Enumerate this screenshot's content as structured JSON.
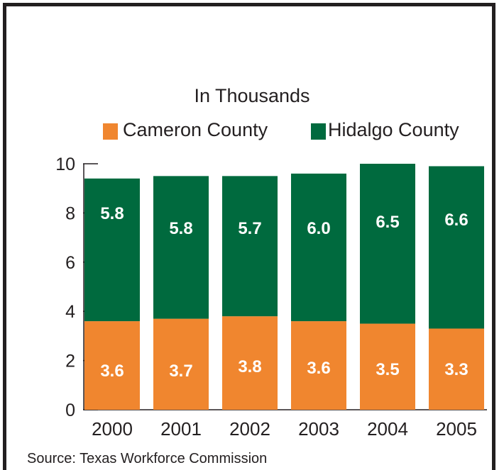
{
  "chart_data": {
    "type": "bar",
    "stacked": true,
    "title": "",
    "subtitle": "In Thousands",
    "categories": [
      "2000",
      "2001",
      "2002",
      "2003",
      "2004",
      "2005"
    ],
    "series": [
      {
        "name": "Cameron County",
        "color": "#f0862f",
        "values": [
          3.6,
          3.7,
          3.8,
          3.6,
          3.5,
          3.3
        ],
        "labels": [
          "3.6",
          "3.7",
          "3.8",
          "3.6",
          "3.5",
          "3.3"
        ]
      },
      {
        "name": "Hidalgo County",
        "color": "#006a3e",
        "values": [
          5.8,
          5.8,
          5.7,
          6.0,
          6.5,
          6.6
        ],
        "labels": [
          "5.8",
          "5.8",
          "5.7",
          "6.0",
          "6.5",
          "6.6"
        ]
      }
    ],
    "ylim": [
      0,
      10
    ],
    "yticks": [
      "0",
      "2",
      "4",
      "6",
      "8",
      "10"
    ],
    "xlabel": "",
    "ylabel": "",
    "grid": false,
    "legend": "top-center",
    "source": "Source: Texas Workforce Commission"
  }
}
